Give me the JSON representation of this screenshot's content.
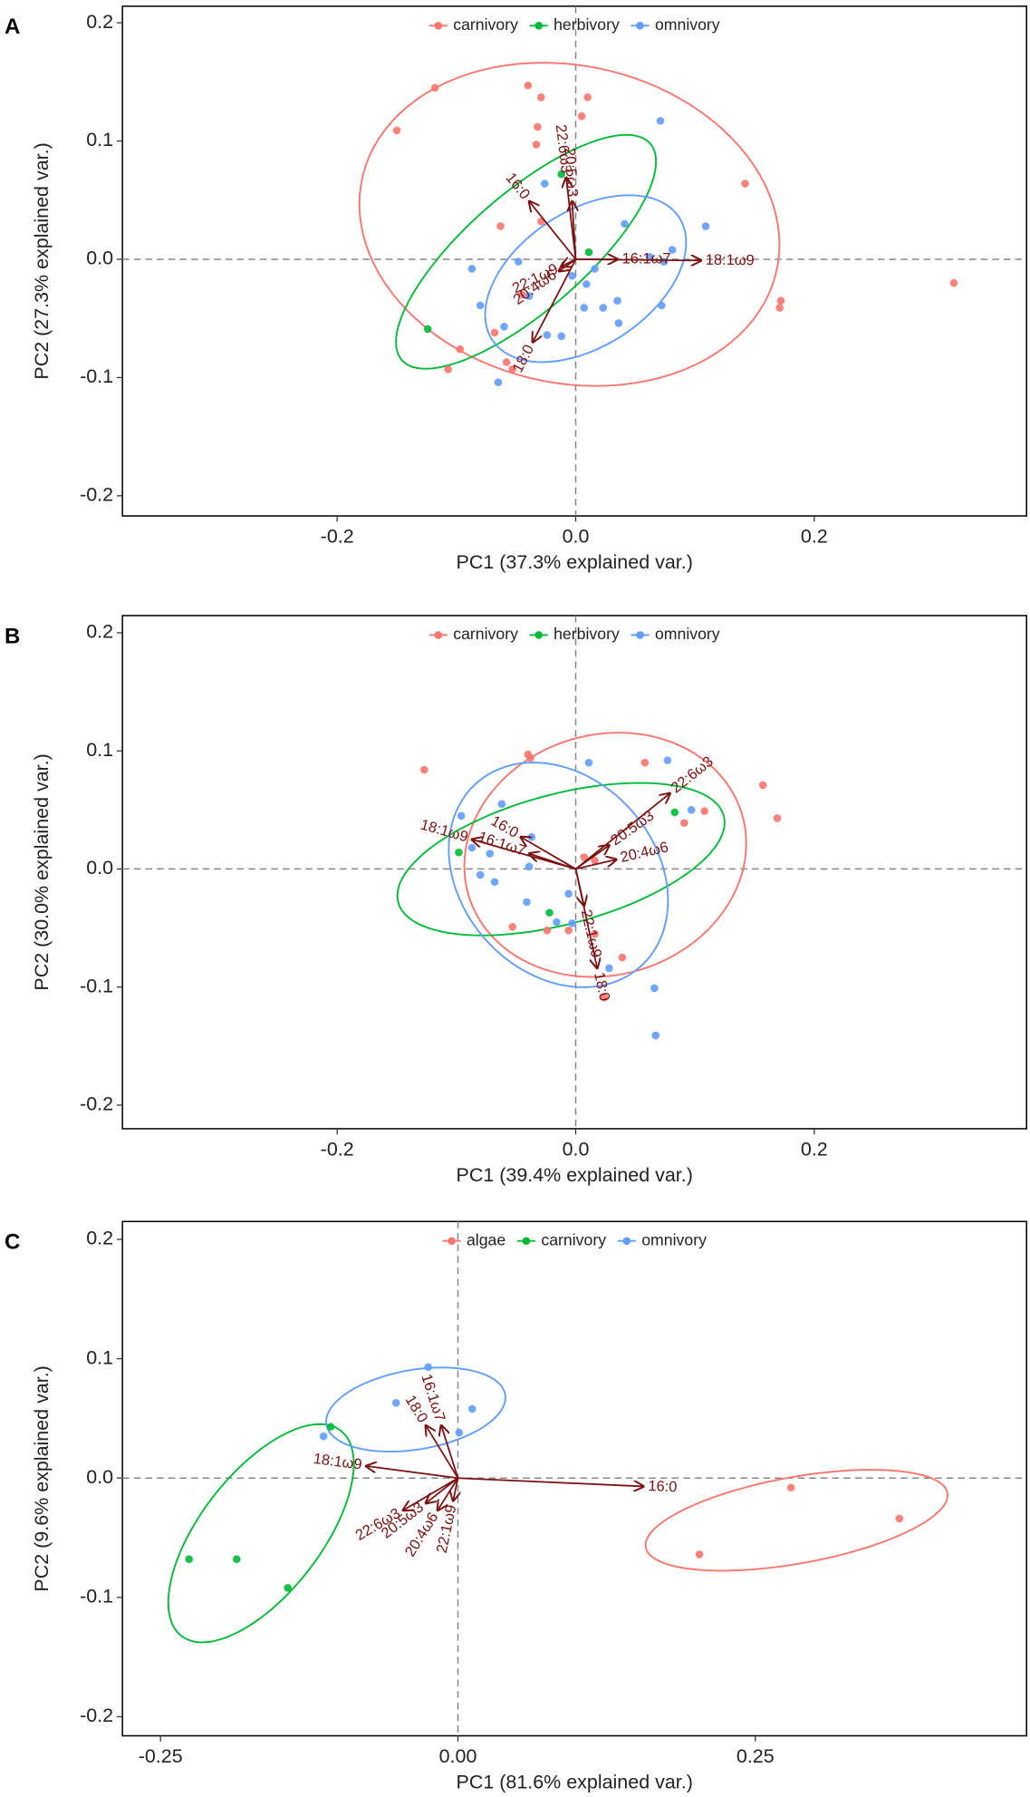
{
  "chart_data": [
    {
      "type": "scatter",
      "panel": "A",
      "xlabel": "PC1 (37.3% explained var.)",
      "ylabel": "PC2 (27.3% explained var.)",
      "xlim": [
        -0.38,
        0.378
      ],
      "ylim": [
        -0.217,
        0.214
      ],
      "xticks": [
        -0.2,
        {
          "value": 0,
          "label": "0.0"
        },
        0.2
      ],
      "yticks": [
        -0.2,
        -0.1,
        {
          "value": 0,
          "label": "0.0"
        },
        0.1,
        0.2
      ],
      "series": [
        {
          "name": "carnivory",
          "color": "#F8766D",
          "x": [
            -0.118,
            -0.15,
            -0.04,
            -0.029,
            0.01,
            0.005,
            -0.032,
            -0.033,
            0.142,
            -0.063,
            -0.029,
            0.317,
            0.172,
            0.171,
            -0.045,
            -0.068,
            -0.097,
            -0.107,
            -0.058,
            -0.053
          ],
          "y": [
            0.145,
            0.109,
            0.147,
            0.137,
            0.137,
            0.121,
            0.112,
            0.097,
            0.064,
            0.028,
            0.032,
            -0.02,
            -0.035,
            -0.041,
            -0.03,
            -0.062,
            -0.076,
            -0.093,
            -0.087,
            -0.093
          ]
        },
        {
          "name": "herbivory",
          "color": "#00BA38",
          "x": [
            -0.012,
            0.011,
            -0.124
          ],
          "y": [
            0.072,
            0.006,
            -0.059
          ]
        },
        {
          "name": "omnivory",
          "color": "#619CFF",
          "x": [
            0.071,
            -0.026,
            0.041,
            0.109,
            0.081,
            0.062,
            -0.087,
            -0.048,
            0.016,
            -0.003,
            0.009,
            0.035,
            0.023,
            0.007,
            -0.08,
            -0.06,
            -0.024,
            -0.012,
            0.072,
            0.036,
            -0.065,
            -0.039,
            0.074
          ],
          "y": [
            0.117,
            0.064,
            0.03,
            0.028,
            0.008,
            0.002,
            -0.008,
            -0.002,
            -0.008,
            -0.014,
            -0.021,
            -0.035,
            -0.041,
            -0.041,
            -0.039,
            -0.057,
            -0.064,
            -0.065,
            -0.039,
            -0.054,
            -0.104,
            -0.031,
            -0.002
          ]
        }
      ],
      "arrows": [
        {
          "label": "18:1ω9",
          "x": 0.105,
          "y": -0.001
        },
        {
          "label": "16:1ω7",
          "x": 0.035,
          "y": 0.0
        },
        {
          "label": "16:0",
          "x": -0.039,
          "y": 0.049
        },
        {
          "label": "22:6ω3",
          "x": -0.008,
          "y": 0.069
        },
        {
          "label": "20:5ω3",
          "x": -0.003,
          "y": 0.049
        },
        {
          "label": "22:1ω9",
          "x": -0.012,
          "y": -0.006
        },
        {
          "label": "20:4ω6",
          "x": -0.014,
          "y": -0.01
        },
        {
          "label": "18:0",
          "x": -0.036,
          "y": -0.07
        }
      ]
    },
    {
      "type": "scatter",
      "panel": "B",
      "xlabel": "PC1 (39.4% explained var.)",
      "ylabel": "PC2 (30.0% explained var.)",
      "xlim": [
        -0.38,
        0.378
      ],
      "ylim": [
        -0.22,
        0.2146
      ],
      "xticks": [
        -0.2,
        {
          "value": 0,
          "label": "0.0"
        },
        0.2
      ],
      "yticks": [
        -0.2,
        -0.1,
        {
          "value": 0,
          "label": "0.0"
        },
        0.1,
        0.2
      ],
      "series": [
        {
          "name": "carnivory",
          "color": "#F8766D",
          "x": [
            -0.127,
            -0.04,
            -0.038,
            0.058,
            0.157,
            0.169,
            0.108,
            0.091,
            0.016,
            0.007,
            -0.053,
            -0.024,
            -0.006,
            0.016,
            0.039,
            0.024
          ],
          "y": [
            0.084,
            0.097,
            0.094,
            0.09,
            0.071,
            0.043,
            0.049,
            0.039,
            0.007,
            0.01,
            -0.049,
            -0.052,
            -0.052,
            -0.055,
            -0.075,
            -0.109
          ]
        },
        {
          "name": "herbivory",
          "color": "#00BA38",
          "x": [
            -0.098,
            0.083,
            -0.022
          ],
          "y": [
            0.014,
            0.048,
            -0.037
          ]
        },
        {
          "name": "omnivory",
          "color": "#619CFF",
          "x": [
            0.011,
            0.077,
            0.097,
            -0.062,
            -0.096,
            -0.087,
            -0.072,
            -0.08,
            -0.068,
            -0.039,
            -0.041,
            -0.016,
            -0.006,
            -0.003,
            0.028,
            0.066,
            0.067,
            -0.037
          ],
          "y": [
            0.09,
            0.092,
            0.05,
            0.055,
            0.045,
            0.018,
            0.013,
            -0.005,
            -0.011,
            0.002,
            -0.028,
            -0.045,
            -0.021,
            -0.046,
            -0.084,
            -0.101,
            -0.141,
            0.027
          ]
        }
      ],
      "arrows": [
        {
          "label": "22:6ω3",
          "x": 0.079,
          "y": 0.064
        },
        {
          "label": "20:5ω3",
          "x": 0.028,
          "y": 0.02
        },
        {
          "label": "20:4ω6",
          "x": 0.034,
          "y": 0.008
        },
        {
          "label": "16:0",
          "x": -0.046,
          "y": 0.027
        },
        {
          "label": "18:1ω9",
          "x": -0.087,
          "y": 0.025
        },
        {
          "label": "16:1ω7",
          "x": -0.039,
          "y": 0.013
        },
        {
          "label": "22:1ω9",
          "x": 0.007,
          "y": -0.031
        },
        {
          "label": "18:0",
          "x": 0.018,
          "y": -0.084
        }
      ]
    },
    {
      "type": "scatter",
      "panel": "C",
      "xlabel": "PC1 (81.6% explained var.)",
      "ylabel": "PC2 (9.6% explained var.)",
      "xlim": [
        -0.282,
        0.478
      ],
      "ylim": [
        -0.216,
        0.215
      ],
      "xticks": [
        {
          "value": -0.25,
          "label": "-0.25"
        },
        {
          "value": 0,
          "label": "0.00"
        },
        0.25
      ],
      "yticks": [
        -0.2,
        -0.1,
        {
          "value": 0,
          "label": "0.0"
        },
        0.1,
        0.2
      ],
      "series": [
        {
          "name": "algae",
          "color": "#F8766D",
          "x": [
            0.28,
            0.371,
            0.203
          ],
          "y": [
            -0.008,
            -0.034,
            -0.064
          ]
        },
        {
          "name": "carnivory",
          "color": "#00BA38",
          "x": [
            -0.107,
            -0.226,
            -0.186,
            -0.143
          ],
          "y": [
            0.043,
            -0.068,
            -0.068,
            -0.092
          ]
        },
        {
          "name": "omnivory",
          "color": "#619CFF",
          "x": [
            -0.025,
            -0.052,
            0.012,
            -0.113,
            0.001
          ],
          "y": [
            0.093,
            0.063,
            0.058,
            0.035,
            0.038
          ]
        }
      ],
      "arrows": [
        {
          "label": "16:0",
          "x": 0.156,
          "y": -0.007
        },
        {
          "label": "18:1ω9",
          "x": -0.077,
          "y": 0.01
        },
        {
          "label": "18:0",
          "x": -0.027,
          "y": 0.044
        },
        {
          "label": "16:1ω7",
          "x": -0.014,
          "y": 0.044
        },
        {
          "label": "22:6ω3",
          "x": -0.046,
          "y": -0.027
        },
        {
          "label": "20:5ω3",
          "x": -0.027,
          "y": -0.021
        },
        {
          "label": "20:4ω6",
          "x": -0.017,
          "y": -0.027
        },
        {
          "label": "22:1ω9",
          "x": -0.004,
          "y": -0.019
        }
      ]
    }
  ]
}
